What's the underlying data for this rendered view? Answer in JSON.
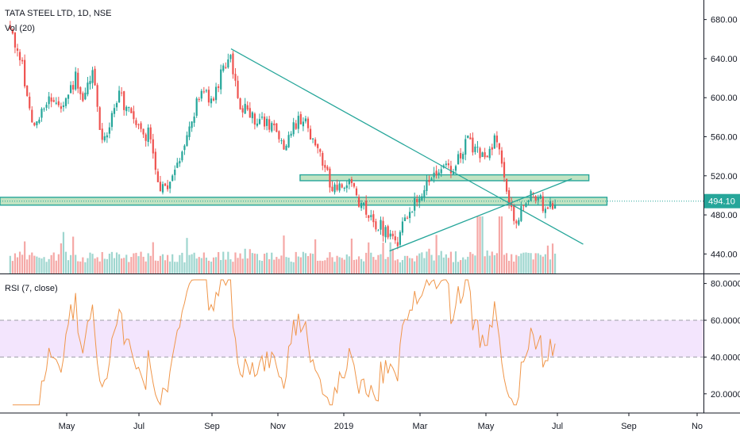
{
  "legend": {
    "symbol": "TATA STEEL LTD, 1D, NSE",
    "volume": "Vol (20)",
    "rsi": "RSI (7, close)"
  },
  "colors": {
    "up": "#26a69a",
    "down": "#ef5350",
    "vol_up": "#9fd6cf",
    "vol_down": "#f5a8a6",
    "rsi_line": "#f0964a",
    "rsi_band": "#f3e5fd",
    "trendline": "#26a69a",
    "zone_fill": "#4caf50",
    "price_tag": "#26a69a"
  },
  "chart_data": [
    {
      "type": "candlestick",
      "title": "TATA STEEL LTD, 1D, NSE",
      "ylim": [
        420,
        700
      ],
      "y_ticks": [
        "440.00",
        "480.00",
        "520.00",
        "560.00",
        "600.00",
        "640.00",
        "680.00"
      ],
      "last_price": "494.10",
      "x_ticks": [
        "May",
        "Jul",
        "Sep",
        "Nov",
        "2019",
        "Mar",
        "May",
        "Jul",
        "Sep",
        "No"
      ],
      "anchors": [
        [
          "2018-03-01",
          670
        ],
        [
          "2018-03-10",
          640
        ],
        [
          "2018-03-22",
          570
        ],
        [
          "2018-04-05",
          605
        ],
        [
          "2018-04-15",
          585
        ],
        [
          "2018-04-28",
          620
        ],
        [
          "2018-05-05",
          590
        ],
        [
          "2018-05-12",
          632
        ],
        [
          "2018-05-22",
          550
        ],
        [
          "2018-06-05",
          605
        ],
        [
          "2018-06-20",
          570
        ],
        [
          "2018-07-03",
          560
        ],
        [
          "2018-07-12",
          500
        ],
        [
          "2018-07-25",
          530
        ],
        [
          "2018-08-05",
          565
        ],
        [
          "2018-08-15",
          600
        ],
        [
          "2018-08-28",
          602
        ],
        [
          "2018-09-05",
          630
        ],
        [
          "2018-09-12",
          640
        ],
        [
          "2018-09-20",
          595
        ],
        [
          "2018-10-05",
          575
        ],
        [
          "2018-10-20",
          570
        ],
        [
          "2018-10-30",
          545
        ],
        [
          "2018-11-10",
          580
        ],
        [
          "2018-11-25",
          560
        ],
        [
          "2018-12-05",
          520
        ],
        [
          "2018-12-15",
          505
        ],
        [
          "2018-12-25",
          512
        ],
        [
          "2019-01-05",
          490
        ],
        [
          "2019-01-20",
          470
        ],
        [
          "2019-02-05",
          448
        ],
        [
          "2019-02-15",
          480
        ],
        [
          "2019-02-28",
          500
        ],
        [
          "2019-03-10",
          520
        ],
        [
          "2019-03-25",
          528
        ],
        [
          "2019-04-10",
          555
        ],
        [
          "2019-04-25",
          540
        ],
        [
          "2019-05-05",
          560
        ],
        [
          "2019-05-12",
          515
        ],
        [
          "2019-05-20",
          470
        ],
        [
          "2019-05-28",
          490
        ],
        [
          "2019-06-05",
          505
        ],
        [
          "2019-06-15",
          490
        ],
        [
          "2019-06-26",
          494
        ]
      ],
      "horizontal_zones": [
        {
          "from": "2018-02-20",
          "to": "2019-08-10",
          "low": 490,
          "high": 498
        },
        {
          "from": "2018-11-12",
          "to": "2019-07-25",
          "low": 515,
          "high": 521
        }
      ],
      "trendlines": [
        {
          "from": [
            "2018-09-12",
            650
          ],
          "to": [
            "2019-07-20",
            450
          ]
        },
        {
          "from": [
            "2019-01-30",
            443
          ],
          "to": [
            "2019-07-10",
            517
          ]
        }
      ]
    },
    {
      "type": "bar",
      "title": "Vol (20)"
    },
    {
      "type": "line",
      "title": "RSI (7, close)",
      "ylim": [
        10,
        85
      ],
      "y_ticks": [
        "20.0000",
        "40.0000",
        "60.0000",
        "80.0000"
      ],
      "overbought": 60,
      "oversold": 40
    }
  ]
}
